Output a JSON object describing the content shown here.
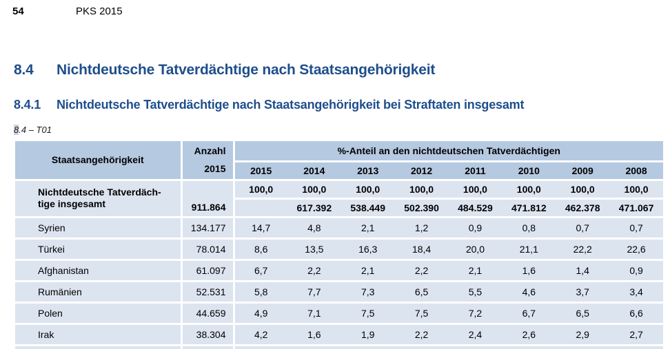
{
  "page_header": {
    "page_number": "54",
    "doc_title": "PKS 2015"
  },
  "headings": {
    "section_number": "8.4",
    "section_title": "Nichtdeutsche Tatverdächtige nach Staatsangehörigkeit",
    "subsection_number": "8.4.1",
    "subsection_title": "Nichtdeutsche Tatverdächtige nach Staatsangehörigkeit bei Straftaten insgesamt",
    "table_label_first": "8",
    "table_label_rest": ".4 – T01"
  },
  "table": {
    "col_staats": "Staatsangehörigkeit",
    "col_anzahl": "Anzahl\n2015",
    "col_percent_group": "%-Anteil an den nichtdeutschen Tatverdächtigen",
    "years": [
      "2015",
      "2014",
      "2013",
      "2012",
      "2011",
      "2010",
      "2009",
      "2008"
    ],
    "total_row": {
      "label": "Nichtdeutsche Tatverdäch-\ntige insgesamt",
      "anzahl": "911.864",
      "percent_line": [
        "100,0",
        "100,0",
        "100,0",
        "100,0",
        "100,0",
        "100,0",
        "100,0",
        "100,0"
      ],
      "count_line": [
        "",
        "617.392",
        "538.449",
        "502.390",
        "484.529",
        "471.812",
        "462.378",
        "471.067"
      ]
    },
    "rows": [
      {
        "label": "Syrien",
        "anzahl": "134.177",
        "values": [
          "14,7",
          "4,8",
          "2,1",
          "1,2",
          "0,9",
          "0,8",
          "0,7",
          "0,7"
        ]
      },
      {
        "label": "Türkei",
        "anzahl": "78.014",
        "values": [
          "8,6",
          "13,5",
          "16,3",
          "18,4",
          "20,0",
          "21,1",
          "22,2",
          "22,6"
        ]
      },
      {
        "label": "Afghanistan",
        "anzahl": "61.097",
        "values": [
          "6,7",
          "2,2",
          "2,1",
          "2,2",
          "2,1",
          "1,6",
          "1,4",
          "0,9"
        ]
      },
      {
        "label": "Rumänien",
        "anzahl": "52.531",
        "values": [
          "5,8",
          "7,7",
          "7,3",
          "6,5",
          "5,5",
          "4,6",
          "3,7",
          "3,4"
        ]
      },
      {
        "label": "Polen",
        "anzahl": "44.659",
        "values": [
          "4,9",
          "7,1",
          "7,5",
          "7,5",
          "7,2",
          "6,7",
          "6,5",
          "6,6"
        ]
      },
      {
        "label": "Irak",
        "anzahl": "38.304",
        "values": [
          "4,2",
          "1,6",
          "1,9",
          "2,2",
          "2,4",
          "2,6",
          "2,9",
          "2,7"
        ]
      }
    ]
  },
  "colors": {
    "heading_blue": "#1f4e8c",
    "table_header_bg": "#b5c9e1",
    "table_row_bg": "#dce4f0",
    "table_label_highlight": "#c9d3e0"
  }
}
